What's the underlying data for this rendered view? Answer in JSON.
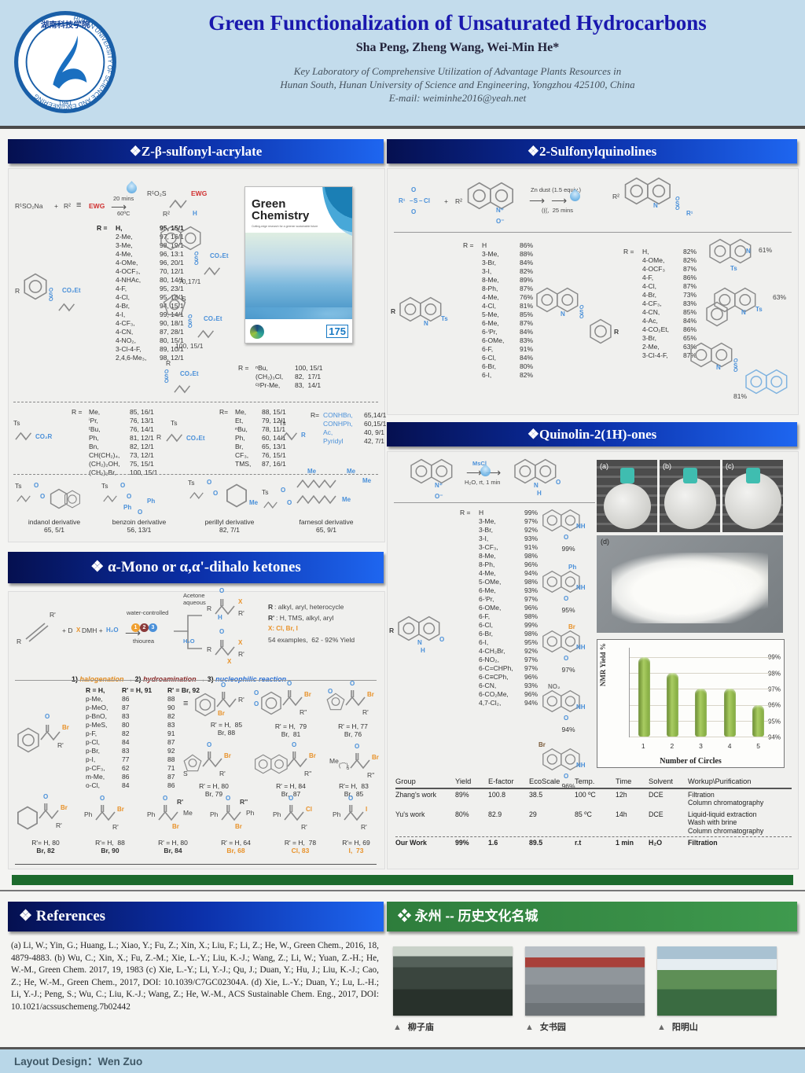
{
  "header": {
    "title": "Green Functionalization of Unsaturated Hydrocarbons",
    "authors": "Sha Peng, Zheng Wang, Wei-Min He*",
    "aff1": "Key Laboratory of Comprehensive Utilization of Advantage Plants Resources in",
    "aff2": "Hunan South, Hunan University of Science and Engineering, Yongzhou 425100, China",
    "email": "E-mail: weiminhe2016@yeah.net",
    "logo_ring": "HUNAN UNIVERSITY OF SCIENCE AND ENGINEERING",
    "logo_cn": "湖南科技学院",
    "logo_year": "1941"
  },
  "atoms": {
    "ts": "Ts",
    "co2et": "CO₂Et",
    "co2r": "CO₂R",
    "o": "O",
    "s": "S",
    "n": "N",
    "nh": "NH",
    "h": "H",
    "br": "Br",
    "cl": "Cl",
    "i": "I",
    "ph": "Ph",
    "me": "Me",
    "r": "R",
    "r1": "R¹",
    "r2": "R²",
    "rp": "R'",
    "rpp": "R''",
    "x": "X",
    "no2": "NO₂",
    "plus": "+",
    "tb": "≡",
    "arrow": "⟶",
    "np": "N⁺",
    "om": "O⁻",
    "five": "5",
    "dbl": "="
  },
  "panel1": {
    "title": "❖Z-β-sulfonyl-acrylate",
    "scheme": {
      "a": "R¹SO₂Na",
      "plus": "+",
      "b": "R²",
      "ewg": "EWG",
      "time": "20 mins",
      "temp": "60ºC",
      "p1": "R¹O₂S",
      "p2": "EWG",
      "p3": "R²",
      "p4": "H"
    },
    "aryl_rows": [
      [
        "R =",
        "H,",
        "95, 15/1"
      ],
      [
        "",
        "2-Me,",
        "97, 16/1"
      ],
      [
        "",
        "3-Me,",
        "98, 19/1"
      ],
      [
        "",
        "4-Me,",
        "96, 13:1"
      ],
      [
        "",
        "4-OMe,",
        "96, 20/1"
      ],
      [
        "",
        "4-OCF₃,",
        "70, 12/1"
      ],
      [
        "",
        "4-NHAc,",
        "80, 14/1"
      ],
      [
        "",
        "4-F,",
        "95, 23/1"
      ],
      [
        "",
        "4-Cl,",
        "95, 18/1"
      ],
      [
        "",
        "4-Br,",
        "94, 15/1"
      ],
      [
        "",
        "4-I,",
        "99, 14/1"
      ],
      [
        "",
        "4-CF₃,",
        "90, 18/1"
      ],
      [
        "",
        "4-CN,",
        "87, 28/1"
      ],
      [
        "",
        "4-NO₂,",
        "80, 15/1"
      ],
      [
        "",
        "3-Cl-4-F,",
        "89, 10/1"
      ],
      [
        "",
        "2,4,6-Me₃,",
        "98, 12/1"
      ]
    ],
    "naph_yield": "70,17/1",
    "thio_yield": "100, 15/1",
    "alkyl_rows": [
      [
        "R =",
        "ⁿBu,",
        "100, 15/1"
      ],
      [
        "",
        "(CH₂)₃Cl,",
        "82,  17/1"
      ],
      [
        "",
        "ᶜʸPr-Me,",
        "83,  14/1"
      ]
    ],
    "ester_rows": [
      [
        "R =",
        "Me,",
        "85, 16/1"
      ],
      [
        "",
        "ⁱPr,",
        "76, 13/1"
      ],
      [
        "",
        "ᵗBu,",
        "76, 14/1"
      ],
      [
        "",
        "Ph,",
        "81, 12/1"
      ],
      [
        "",
        "Bn,",
        "82, 12/1"
      ],
      [
        "",
        "CH(CH₂)₄,",
        "73, 12/1"
      ],
      [
        "",
        "(CH₂)₂OH,",
        "75, 15/1"
      ],
      [
        "",
        "(CH₂)₂Br,",
        "100, 15/1"
      ]
    ],
    "alpha_rows": [
      [
        "R=",
        "Me,",
        "88, 15/1"
      ],
      [
        "",
        "Et,",
        "79, 12/1"
      ],
      [
        "",
        "ⁿBu,",
        "78, 11/1"
      ],
      [
        "",
        "Ph,",
        "60, 14/1"
      ],
      [
        "",
        "Br,",
        "65, 13/1"
      ],
      [
        "",
        "CF₃,",
        "76, 15/1"
      ],
      [
        "",
        "TMS,",
        "87, 16/1"
      ]
    ],
    "amide_rows": [
      [
        "R=",
        "CONHBn,",
        "65,14/1"
      ],
      [
        "",
        "CONHPh,",
        "60,15/1"
      ],
      [
        "",
        "Ac,",
        "40, 9/1"
      ],
      [
        "",
        "Pyridyl",
        "42, 7/1"
      ]
    ],
    "cover": {
      "t1": "Green",
      "t2": "Chemistry",
      "tag": "Cutting-edge research for a greener sustainable future",
      "badge": "175"
    },
    "derivs": [
      {
        "name": "indanol derivative",
        "y": "65, 5/1"
      },
      {
        "name": "benzoin derivative",
        "y": "56, 13/1"
      },
      {
        "name": "perillyl derivative",
        "y": "82, 7/1"
      },
      {
        "name": "farnesol derivative",
        "y": "65, 9/1"
      }
    ]
  },
  "panel2": {
    "title": "❖ α-Mono or α,α'-dihalo ketones",
    "scheme": {
      "r": "R",
      "rp": "R'",
      "mix1": "+ D",
      "mixX": "X",
      "mix2": "DMH +",
      "mixW": "H₂O",
      "top": "water-controlled",
      "bot": "thiourea",
      "c1": "1",
      "c2": "2",
      "c3": "3",
      "br1a": "Acetone",
      "br1b": "aqueous",
      "br2": "H₂O",
      "n1a": "R",
      "n1b": ": alkyl, aryl, heterocycle",
      "n2a": "R'",
      "n2b": ": H, TMS, alkyl, aryl",
      "n3": "X: Cl, Br, I",
      "n4": "54 examples,  62 - 92% Yield"
    },
    "steps": {
      "n1": "1) ",
      "w1": "halogenation",
      "a1": " → ",
      "n2": "2) ",
      "w2": "hydroamination",
      "a2": " → ",
      "n3": "3) ",
      "w3": "nucleophilic reaction"
    },
    "main_rows": [
      [
        "R = H,",
        "R' = H, 91",
        "R' = Br, 92"
      ],
      [
        "p-Me,",
        "86",
        "88"
      ],
      [
        "p-MeO,",
        "87",
        "90"
      ],
      [
        "p-BnO,",
        "83",
        "82"
      ],
      [
        "p-MeS,",
        "80",
        "83"
      ],
      [
        "p-F,",
        "82",
        "91"
      ],
      [
        "p-Cl,",
        "84",
        "87"
      ],
      [
        "p-Br,",
        "83",
        "92"
      ],
      [
        "p-I,",
        "77",
        "88"
      ],
      [
        "p-CF₃,",
        "62",
        "71"
      ],
      [
        "m-Me,",
        "86",
        "87"
      ],
      [
        "o-Cl,",
        "84",
        "86"
      ]
    ],
    "s_yields": [
      {
        "l1": "R' = H,  85",
        "l2": "Br, 88"
      },
      {
        "l1": "R' = H,  79",
        "l2": "Br,  81"
      },
      {
        "l1": "R' = H, 77",
        "l2": "Br, 76"
      },
      {
        "l1": "R' = H, 80",
        "l2": "Br, 79"
      },
      {
        "l1": "R' = H, 84",
        "l2": "Br,  87"
      },
      {
        "l1": "R'= H,  83",
        "l2": "Br,  85"
      }
    ],
    "b_yields": [
      {
        "l1": "R'= H, 80",
        "l2": "Br, 82"
      },
      {
        "l1": "R'= H,  88",
        "l2": "Br, 90"
      },
      {
        "l1": "R' = H, 80",
        "l2": "Br, 84"
      },
      {
        "l1": "R' = H, 64",
        "l2": "Br, 68"
      },
      {
        "l1": "R' = H,  78",
        "l2": "Cl, 83"
      },
      {
        "l1": "R'= H, 69",
        "l2": "I,  73"
      }
    ]
  },
  "sulfq": {
    "title": "❖2-Sulfonylquinolines",
    "scheme": {
      "r1": "R¹",
      "s": "S",
      "cl": "Cl",
      "o": "O",
      "plus": "+",
      "r2": "R²",
      "zn": "Zn dust (1.5 equiv.)",
      "son": "(((,  25 mins"
    },
    "listA": [
      [
        "R =",
        "H",
        "86%"
      ],
      [
        "",
        "3-Me,",
        "88%"
      ],
      [
        "",
        "3-Br,",
        "84%"
      ],
      [
        "",
        "3-I,",
        "82%"
      ],
      [
        "",
        "8-Me,",
        "89%"
      ],
      [
        "",
        "8-Ph,",
        "87%"
      ],
      [
        "",
        "4-Me,",
        "76%"
      ],
      [
        "",
        "4-Cl,",
        "81%"
      ],
      [
        "",
        "5-Me,",
        "85%"
      ],
      [
        "",
        "6-Me,",
        "87%"
      ],
      [
        "",
        "6-ⁱPr,",
        "84%"
      ],
      [
        "",
        "6-OMe,",
        "83%"
      ],
      [
        "",
        "6-F,",
        "91%"
      ],
      [
        "",
        "6-Cl,",
        "84%"
      ],
      [
        "",
        "6-Br,",
        "80%"
      ],
      [
        "",
        "6-I,",
        "82%"
      ]
    ],
    "listB": [
      [
        "R =",
        "H,",
        "82%"
      ],
      [
        "",
        "4-OMe,",
        "82%"
      ],
      [
        "",
        "4-OCF₃",
        "87%"
      ],
      [
        "",
        "4-F,",
        "86%"
      ],
      [
        "",
        "4-Cl,",
        "87%"
      ],
      [
        "",
        "4-Br,",
        "73%"
      ],
      [
        "",
        "4-CF₃,",
        "83%"
      ],
      [
        "",
        "4-CN,",
        "85%"
      ],
      [
        "",
        "4-Ac,",
        "84%"
      ],
      [
        "",
        "4-CO₂Et,",
        "86%"
      ],
      [
        "",
        "3-Br,",
        "65%"
      ],
      [
        "",
        "2-Me,",
        "63%"
      ],
      [
        "",
        "3-Cl-4-F,",
        "87%"
      ]
    ],
    "y61": "61%",
    "y63": "63%",
    "y81": "81%"
  },
  "quino": {
    "title": "❖Quinolin-2(1H)-ones",
    "scheme": {
      "c1": "MsCl",
      "c2": "H₂O, rt, 1 min"
    },
    "list": [
      [
        "R =",
        "H",
        "99%"
      ],
      [
        "",
        "3-Me,",
        "97%"
      ],
      [
        "",
        "3-Br,",
        "92%"
      ],
      [
        "",
        "3-I,",
        "93%"
      ],
      [
        "",
        "3-CF₃,",
        "91%"
      ],
      [
        "",
        "8-Me,",
        "98%"
      ],
      [
        "",
        "8-Ph,",
        "96%"
      ],
      [
        "",
        "4-Me,",
        "94%"
      ],
      [
        "",
        "5-OMe,",
        "98%"
      ],
      [
        "",
        "6-Me,",
        "93%"
      ],
      [
        "",
        "6-ⁱPr,",
        "97%"
      ],
      [
        "",
        "6-OMe,",
        "96%"
      ],
      [
        "",
        "6-F,",
        "98%"
      ],
      [
        "",
        "6-Cl,",
        "99%"
      ],
      [
        "",
        "6-Br,",
        "98%"
      ],
      [
        "",
        "6-I,",
        "95%"
      ],
      [
        "",
        "4-CH₂Br,",
        "92%"
      ],
      [
        "",
        "6-NO₂,",
        "97%"
      ],
      [
        "",
        "6-C=CHPh,",
        "97%"
      ],
      [
        "",
        "6-C≡CPh,",
        "96%"
      ],
      [
        "",
        "6-CN,",
        "93%"
      ],
      [
        "",
        "6-CO₂Me,",
        "96%"
      ],
      [
        "",
        "4,7-Cl₂,",
        "94%"
      ]
    ],
    "sy": [
      {
        "sub": "",
        "y": "99%"
      },
      {
        "sub": "Ph",
        "y": "95%"
      },
      {
        "sub": "Br",
        "y": "97%"
      },
      {
        "sub": "NO₂",
        "y": "94%"
      },
      {
        "sub": "Br",
        "y": "96%"
      }
    ],
    "photos": {
      "a": "(a)",
      "b": "(b)",
      "c": "(c)",
      "d": "(d)"
    },
    "table": {
      "headers": [
        "Group",
        "Yield",
        "E-factor",
        "EcoScale",
        "Temp.",
        "Time",
        "Solvent",
        "Workup\\Purification"
      ],
      "rows": [
        [
          "Zhang's work",
          "89%",
          "100.8",
          "38.5",
          "100 ºC",
          "12h",
          "DCE",
          "Filtration\nColumn chromatography"
        ],
        [
          "Yu's work",
          "80%",
          "82.9",
          "29",
          "85 ºC",
          "14h",
          "DCE",
          "Liquid-liquid extraction\nWash with brine\nColumn chromatography"
        ],
        [
          "Our Work",
          "99%",
          "1.6",
          "89.5",
          "r.t",
          "1 min",
          "H₂O",
          "Filtration"
        ]
      ]
    }
  },
  "chart_data": {
    "type": "bar",
    "categories": [
      "1",
      "2",
      "3",
      "4",
      "5"
    ],
    "values": [
      99,
      98,
      97,
      97,
      96
    ],
    "title": "",
    "xlabel": "Number of  Circles",
    "ylabel": "NMR  Yield %",
    "ylim": [
      94,
      99.6
    ],
    "yticks": [
      99,
      98,
      97,
      96,
      95,
      94
    ],
    "ytick_labels": [
      "99%",
      "98%",
      "97%",
      "96%",
      "95%",
      "94%"
    ],
    "grid": true,
    "bar_color": "#8db645"
  },
  "refs": {
    "title": "❖ References",
    "text": "(a) Li, W.; Yin, G.; Huang, L.; Xiao, Y.; Fu, Z.; Xin, X.; Liu, F.; Li, Z.; He, W., Green Chem., 2016, 18, 4879-4883. (b) Wu, C.; Xin, X.; Fu, Z.-M.; Xie, L.-Y.; Liu, K.-J.; Wang, Z.; Li, W.; Yuan, Z.-H.; He, W.-M., Green Chem. 2017, 19, 1983 (c) Xie, L.-Y.; Li, Y.-J.; Qu, J.; Duan, Y.; Hu, J.; Liu, K.-J.; Cao, Z.; He, W.-M., Green Chem., 2017, DOI: 10.1039/C7GC02304A. (d) Xie, L.-Y.; Duan, Y.; Lu, L.-H.; Li, Y.-J.; Peng, S.; Wu, C.; Liu, K.-J.; Wang, Z.; He, W.-M., ACS Sustainable Chem. Eng., 2017, DOI: 10.1021/acssuschemeng.7b02442"
  },
  "yz": {
    "title": "❖ 永州 -- 历史文化名城",
    "marker": "▲",
    "captions": [
      "柳子庙",
      "女书园",
      "阳明山"
    ]
  },
  "footer": "Layout Design：Wen Zuo"
}
